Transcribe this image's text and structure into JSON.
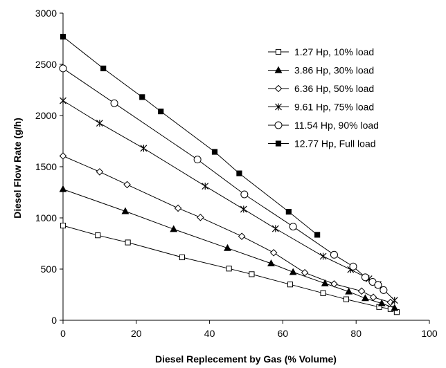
{
  "chart_data": {
    "type": "line",
    "title": "",
    "xlabel": "Diesel Replecement by Gas (% Volume)",
    "ylabel": "Diesel Flow Rate (g/h)",
    "xlim": [
      0,
      100
    ],
    "ylim": [
      0,
      3000
    ],
    "xticks": [
      0,
      20,
      40,
      60,
      80,
      100
    ],
    "yticks": [
      0,
      500,
      1000,
      1500,
      2000,
      2500,
      3000
    ],
    "grid": false,
    "legend_position": "top-right",
    "series": [
      {
        "name": "1.27 Hp, 10% load",
        "marker": "open-square",
        "x": [
          0,
          9.5,
          17.7,
          32.5,
          45.3,
          51.5,
          62.0,
          71.0,
          77.3,
          86.3,
          89.4,
          91.1
        ],
        "y": [
          925,
          830,
          760,
          615,
          505,
          450,
          350,
          265,
          205,
          130,
          110,
          80
        ]
      },
      {
        "name": "3.86 Hp, 30% load",
        "marker": "filled-triangle",
        "x": [
          0,
          17.0,
          30.2,
          44.9,
          56.8,
          62.8,
          71.5,
          78.0,
          82.5,
          87.0,
          90.5
        ],
        "y": [
          1280,
          1065,
          890,
          705,
          555,
          470,
          360,
          280,
          215,
          165,
          120
        ]
      },
      {
        "name": "6.36 Hp, 50% load",
        "marker": "open-diamond",
        "x": [
          0,
          10.0,
          17.5,
          31.4,
          37.5,
          48.8,
          57.5,
          66.0,
          74.0,
          81.5,
          84.7,
          89.4
        ],
        "y": [
          1605,
          1450,
          1325,
          1095,
          1005,
          820,
          660,
          465,
          355,
          285,
          225,
          175
        ]
      },
      {
        "name": "9.61 Hp, 75% load",
        "marker": "asterisk",
        "x": [
          0,
          10.0,
          22.0,
          38.8,
          49.3,
          58.0,
          71.0,
          78.5,
          83.5,
          86.0,
          90.5
        ],
        "y": [
          2145,
          1925,
          1680,
          1310,
          1085,
          895,
          625,
          495,
          405,
          350,
          195
        ]
      },
      {
        "name": "11.54 Hp, 90% load",
        "marker": "open-circle",
        "x": [
          0,
          14.0,
          36.7,
          49.5,
          62.8,
          74.0,
          79.2,
          82.5,
          84.5,
          86.0,
          87.5
        ],
        "y": [
          2460,
          2120,
          1570,
          1230,
          915,
          640,
          525,
          420,
          375,
          345,
          295
        ]
      },
      {
        "name": "12.77 Hp, Full load",
        "marker": "filled-square",
        "x": [
          0,
          11.0,
          21.6,
          26.7,
          41.4,
          48.1,
          61.6,
          69.4
        ],
        "y": [
          2770,
          2460,
          2180,
          2040,
          1645,
          1435,
          1060,
          835
        ]
      }
    ]
  }
}
